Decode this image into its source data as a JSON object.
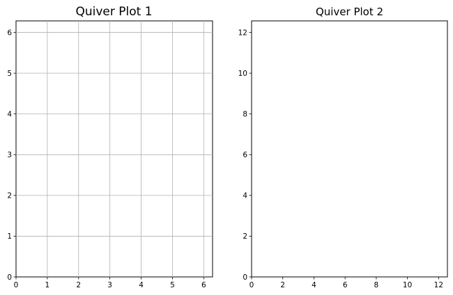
{
  "chart_data": [
    {
      "type": "quiver",
      "title": "Quiver Plot 1",
      "xlabel": "",
      "ylabel": "",
      "xlim": [
        0,
        6.283
      ],
      "ylim": [
        0,
        6.283
      ],
      "xticks": [
        0,
        1,
        2,
        3,
        4,
        5,
        6
      ],
      "yticks": [
        0,
        1,
        2,
        3,
        4,
        5,
        6
      ],
      "grid": true,
      "series": [
        {
          "x": [],
          "y": [],
          "u": [],
          "v": []
        }
      ]
    },
    {
      "type": "quiver",
      "title": "Quiver Plot 2",
      "xlabel": "",
      "ylabel": "",
      "xlim": [
        0,
        12.566
      ],
      "ylim": [
        0,
        12.566
      ],
      "xticks": [
        0,
        2,
        4,
        6,
        8,
        10,
        12
      ],
      "yticks": [
        0,
        2,
        4,
        6,
        8,
        10,
        12
      ],
      "grid": false,
      "series": [
        {
          "x": [],
          "y": [],
          "u": [],
          "v": []
        }
      ]
    }
  ],
  "colors": {
    "frame": "#000000",
    "grid": "#b0b0b0",
    "background": "#ffffff"
  }
}
